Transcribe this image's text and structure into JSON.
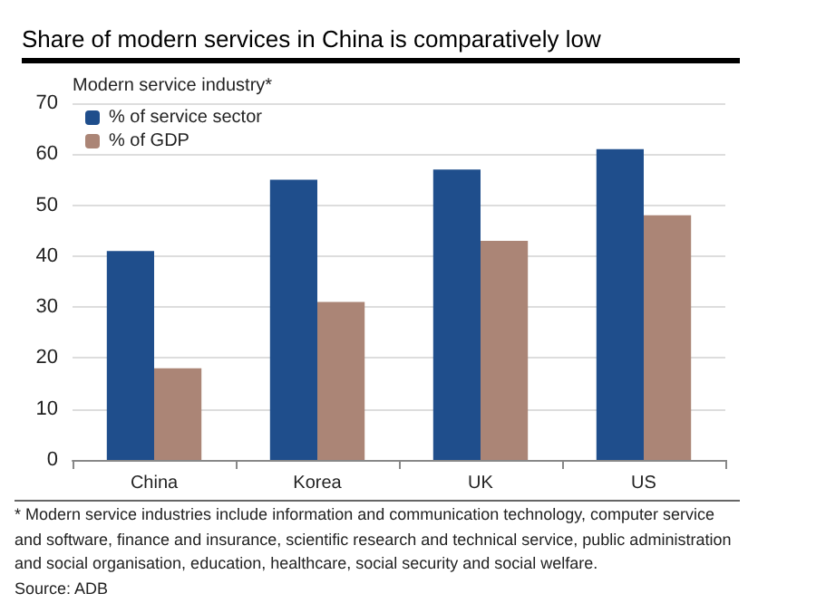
{
  "chart_data": {
    "type": "bar",
    "title": "Share of modern services in China is comparatively low",
    "ylabel": "Modern service industry*",
    "categories": [
      "China",
      "Korea",
      "UK",
      "US"
    ],
    "series": [
      {
        "name": "% of service sector",
        "color": "#1f4e8c",
        "values": [
          41,
          55,
          57,
          61
        ]
      },
      {
        "name": "% of GDP",
        "color": "#ab8576",
        "values": [
          18,
          31,
          43,
          48
        ]
      }
    ],
    "ylim": [
      0,
      70
    ],
    "yticks": [
      0,
      10,
      20,
      30,
      40,
      50,
      60,
      70
    ],
    "grid": "y",
    "legend": "top left",
    "annotations": [
      "* Modern service industries include information and communication technology, computer service and software, finance and insurance, scientific research and technical service, public administration and social organisation, education, healthcare, social security and social welfare.",
      "Source: ADB"
    ]
  }
}
